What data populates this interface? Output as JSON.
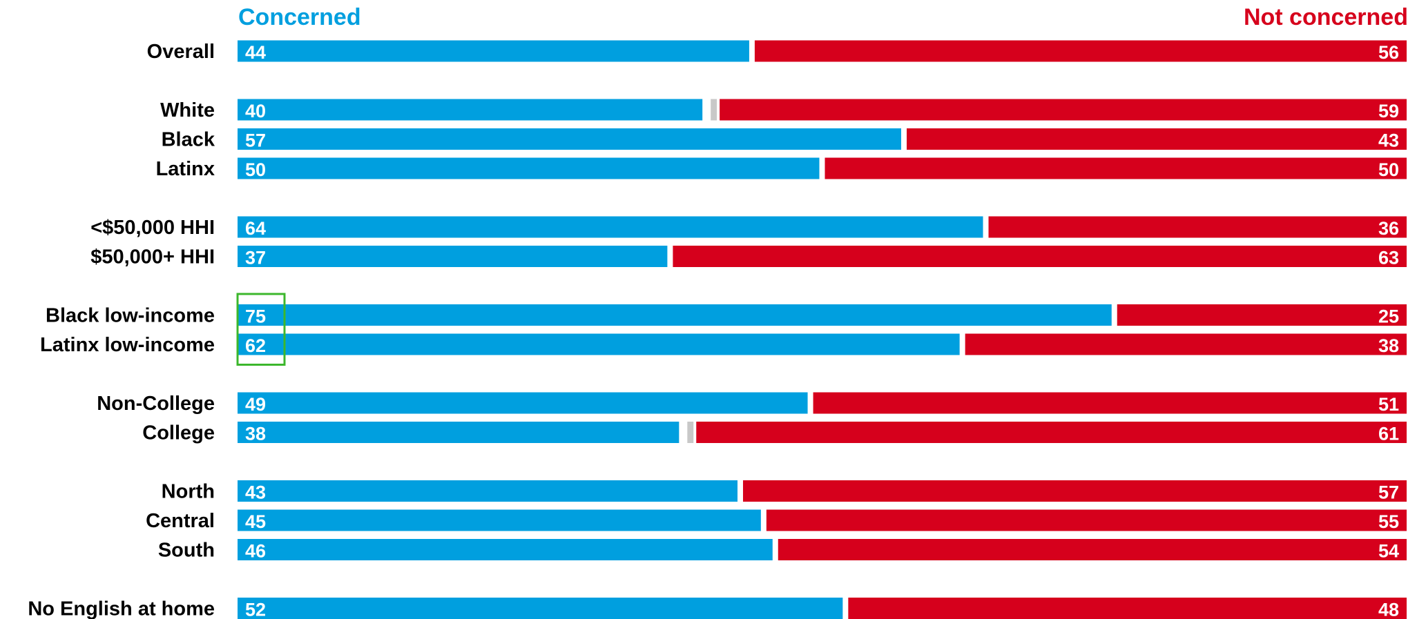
{
  "chart_data": {
    "type": "bar",
    "orientation": "horizontal",
    "stacked": true,
    "title": "",
    "legend": {
      "placement": "top",
      "left_label": "Concerned",
      "right_label": "Not concerned"
    },
    "colors": {
      "concerned": "#009FDF",
      "not_concerned": "#D6001C",
      "gap": "#C8C8C8",
      "highlight": "#3CB72C",
      "text": "#000000"
    },
    "xlim": [
      0,
      100
    ],
    "categories": [
      "Overall",
      "White",
      "Black",
      "Latinx",
      "<$50,000 HHI",
      "$50,000+ HHI",
      "Black low-income",
      "Latinx low-income",
      "Non-College",
      "College",
      "North",
      "Central",
      "South",
      "No English at home"
    ],
    "groups": [
      [
        0
      ],
      [
        1,
        2,
        3
      ],
      [
        4,
        5
      ],
      [
        6,
        7
      ],
      [
        8,
        9
      ],
      [
        10,
        11,
        12
      ],
      [
        13
      ]
    ],
    "series": [
      {
        "name": "Concerned",
        "values": [
          44,
          40,
          57,
          50,
          64,
          37,
          75,
          62,
          49,
          38,
          43,
          45,
          46,
          52
        ]
      },
      {
        "name": "Not concerned",
        "values": [
          56,
          59,
          43,
          50,
          36,
          63,
          25,
          38,
          51,
          61,
          57,
          55,
          54,
          48
        ]
      }
    ],
    "highlighted_rows": [
      6,
      7
    ]
  }
}
